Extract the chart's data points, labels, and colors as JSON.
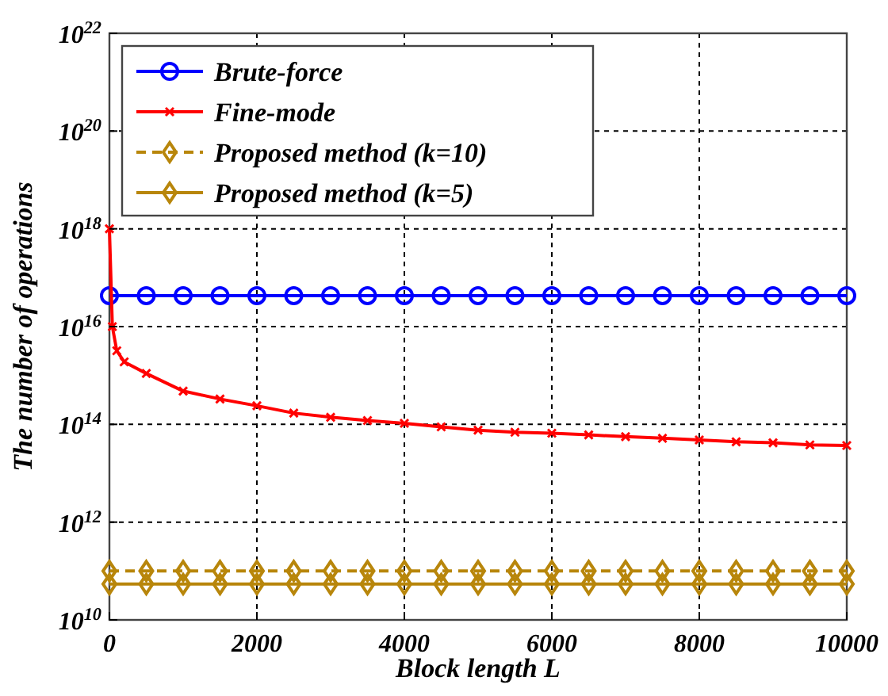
{
  "chart_data": {
    "type": "line",
    "xlabel": "Block length L",
    "ylabel": "The number of operations",
    "log": "y",
    "grid": true,
    "legend": "top left",
    "xlim": [
      0,
      10000
    ],
    "xticks": [
      0,
      2000,
      4000,
      6000,
      8000,
      10000
    ],
    "ylim": [
      10000000000.0,
      1e+22
    ],
    "yticks": [
      {
        "value": 10000000000.0,
        "label": "10$^{10}$"
      },
      {
        "value": 1000000000000.0,
        "label": "10$^{12}$"
      },
      {
        "value": 100000000000000.0,
        "label": "10$^{14}$"
      },
      {
        "value": 1e+16,
        "label": "10$^{16}$"
      },
      {
        "value": 1e+18,
        "label": "10$^{18}$"
      },
      {
        "value": 1e+20,
        "label": "10$^{20}$"
      },
      {
        "value": 1e+22,
        "label": "10$^{22}$"
      }
    ],
    "series": [
      {
        "name": "Brute-force",
        "color": "#0000ff",
        "marker": "circle",
        "line_style": "solid",
        "x": [
          0,
          500,
          1000,
          1500,
          2000,
          2500,
          3000,
          3500,
          4000,
          4500,
          5000,
          5500,
          6000,
          6500,
          7000,
          7500,
          8000,
          8500,
          9000,
          9500,
          10000
        ],
        "values": [
          4.3e+16,
          4.3e+16,
          4.3e+16,
          4.3e+16,
          4.3e+16,
          4.3e+16,
          4.3e+16,
          4.3e+16,
          4.3e+16,
          4.3e+16,
          4.3e+16,
          4.3e+16,
          4.3e+16,
          4.3e+16,
          4.3e+16,
          4.3e+16,
          4.3e+16,
          4.3e+16,
          4.3e+16,
          4.3e+16,
          4.3e+16
        ]
      },
      {
        "name": "Fine-mode",
        "color": "#ff0000",
        "marker": "cross",
        "line_style": "solid",
        "x": [
          0,
          40,
          100,
          200,
          500,
          1000,
          1500,
          2000,
          2500,
          3000,
          3500,
          4000,
          4500,
          5000,
          5500,
          6000,
          6500,
          7000,
          7500,
          8000,
          8500,
          9000,
          9500,
          10000
        ],
        "values": [
          1e+18,
          1e+16,
          3200000000000000.0,
          1900000000000000.0,
          1100000000000000.0,
          480000000000000.0,
          330000000000000.0,
          240000000000000.0,
          170000000000000.0,
          140000000000000.0,
          120000000000000.0,
          105000000000000.0,
          89000000000000.0,
          76000000000000.0,
          69000000000000.0,
          66000000000000.0,
          61000000000000.0,
          56000000000000.0,
          52000000000000.0,
          48000000000000.0,
          44000000000000.0,
          42000000000000.0,
          38000000000000.0,
          37000000000000.0
        ]
      },
      {
        "name": "Proposed method (k=10)",
        "color": "#b8860b",
        "marker": "diamond",
        "line_style": "dashed",
        "x": [
          0,
          500,
          1000,
          1500,
          2000,
          2500,
          3000,
          3500,
          4000,
          4500,
          5000,
          5500,
          6000,
          6500,
          7000,
          7500,
          8000,
          8500,
          9000,
          9500,
          10000
        ],
        "values": [
          100000000000.0,
          100000000000.0,
          100000000000.0,
          100000000000.0,
          100000000000.0,
          100000000000.0,
          100000000000.0,
          100000000000.0,
          100000000000.0,
          100000000000.0,
          100000000000.0,
          100000000000.0,
          100000000000.0,
          100000000000.0,
          100000000000.0,
          100000000000.0,
          100000000000.0,
          100000000000.0,
          100000000000.0,
          100000000000.0,
          100000000000.0
        ]
      },
      {
        "name": "Proposed method (k=5)",
        "color": "#b8860b",
        "marker": "diamond",
        "line_style": "solid",
        "x": [
          0,
          500,
          1000,
          1500,
          2000,
          2500,
          3000,
          3500,
          4000,
          4500,
          5000,
          5500,
          6000,
          6500,
          7000,
          7500,
          8000,
          8500,
          9000,
          9500,
          10000
        ],
        "values": [
          54000000000.0,
          54000000000.0,
          54000000000.0,
          54000000000.0,
          54000000000.0,
          54000000000.0,
          54000000000.0,
          54000000000.0,
          54000000000.0,
          54000000000.0,
          54000000000.0,
          54000000000.0,
          54000000000.0,
          54000000000.0,
          54000000000.0,
          54000000000.0,
          54000000000.0,
          54000000000.0,
          54000000000.0,
          54000000000.0,
          54000000000.0
        ]
      }
    ]
  }
}
